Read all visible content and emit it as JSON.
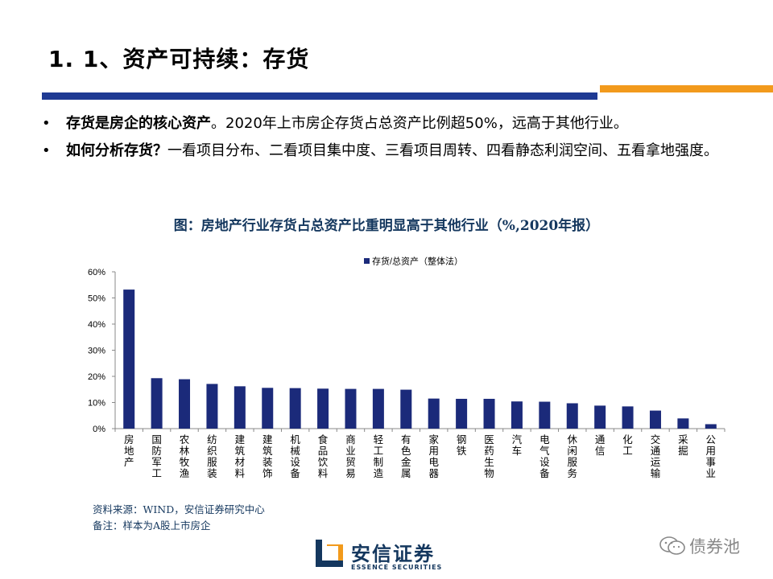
{
  "slide": {
    "title": "1. 1、资产可持续：存货",
    "bullets": [
      {
        "marker": "•",
        "bold": "存货是房企的核心资产",
        "text": "。2020年上市房企存货占总资产比例超50%，远高于其他行业。"
      },
      {
        "marker": "•",
        "bold": "如何分析存货？",
        "text": "一看项目分布、二看项目集中度、三看项目周转、四看静态利润空间、五看拿地强度。"
      }
    ],
    "accent_colors": {
      "blue": "#1F3A93",
      "orange": "#F29A1C"
    }
  },
  "chart_data": {
    "type": "bar",
    "title": "图：房地产行业存货占总资产比重明显高于其他行业（%,2020年报）",
    "categories": [
      "房地产",
      "国防军工",
      "农林牧渔",
      "纺织服装",
      "建筑材料",
      "建筑装饰",
      "机械设备",
      "食品饮料",
      "商业贸易",
      "轻工制造",
      "有色金属",
      "家用电器",
      "钢铁",
      "医药生物",
      "汽车",
      "电气设备",
      "休闲服务",
      "通信",
      "化工",
      "交通运输",
      "采掘",
      "公用事业"
    ],
    "series": [
      {
        "name": "存货/总资产（整体法）",
        "values": [
          53.2,
          19.3,
          18.9,
          17.1,
          16.2,
          15.6,
          15.5,
          15.3,
          15.2,
          15.2,
          14.9,
          11.5,
          11.4,
          11.4,
          10.4,
          10.3,
          9.7,
          8.8,
          8.5,
          6.9,
          3.9,
          1.7
        ],
        "color": "#1B2A7A"
      }
    ],
    "yticks": [
      "0%",
      "10%",
      "20%",
      "30%",
      "40%",
      "50%",
      "60%"
    ],
    "ylim": [
      0,
      60
    ],
    "grid": false,
    "legend": "top"
  },
  "notes": {
    "source": "资料来源：WIND，安信证券研究中心",
    "remark": "备注：样本为A股上市房企"
  },
  "footer": {
    "logo_cn": "安信证券",
    "logo_en": "ESSENCE SECURITIES",
    "watermark": "债券池"
  }
}
